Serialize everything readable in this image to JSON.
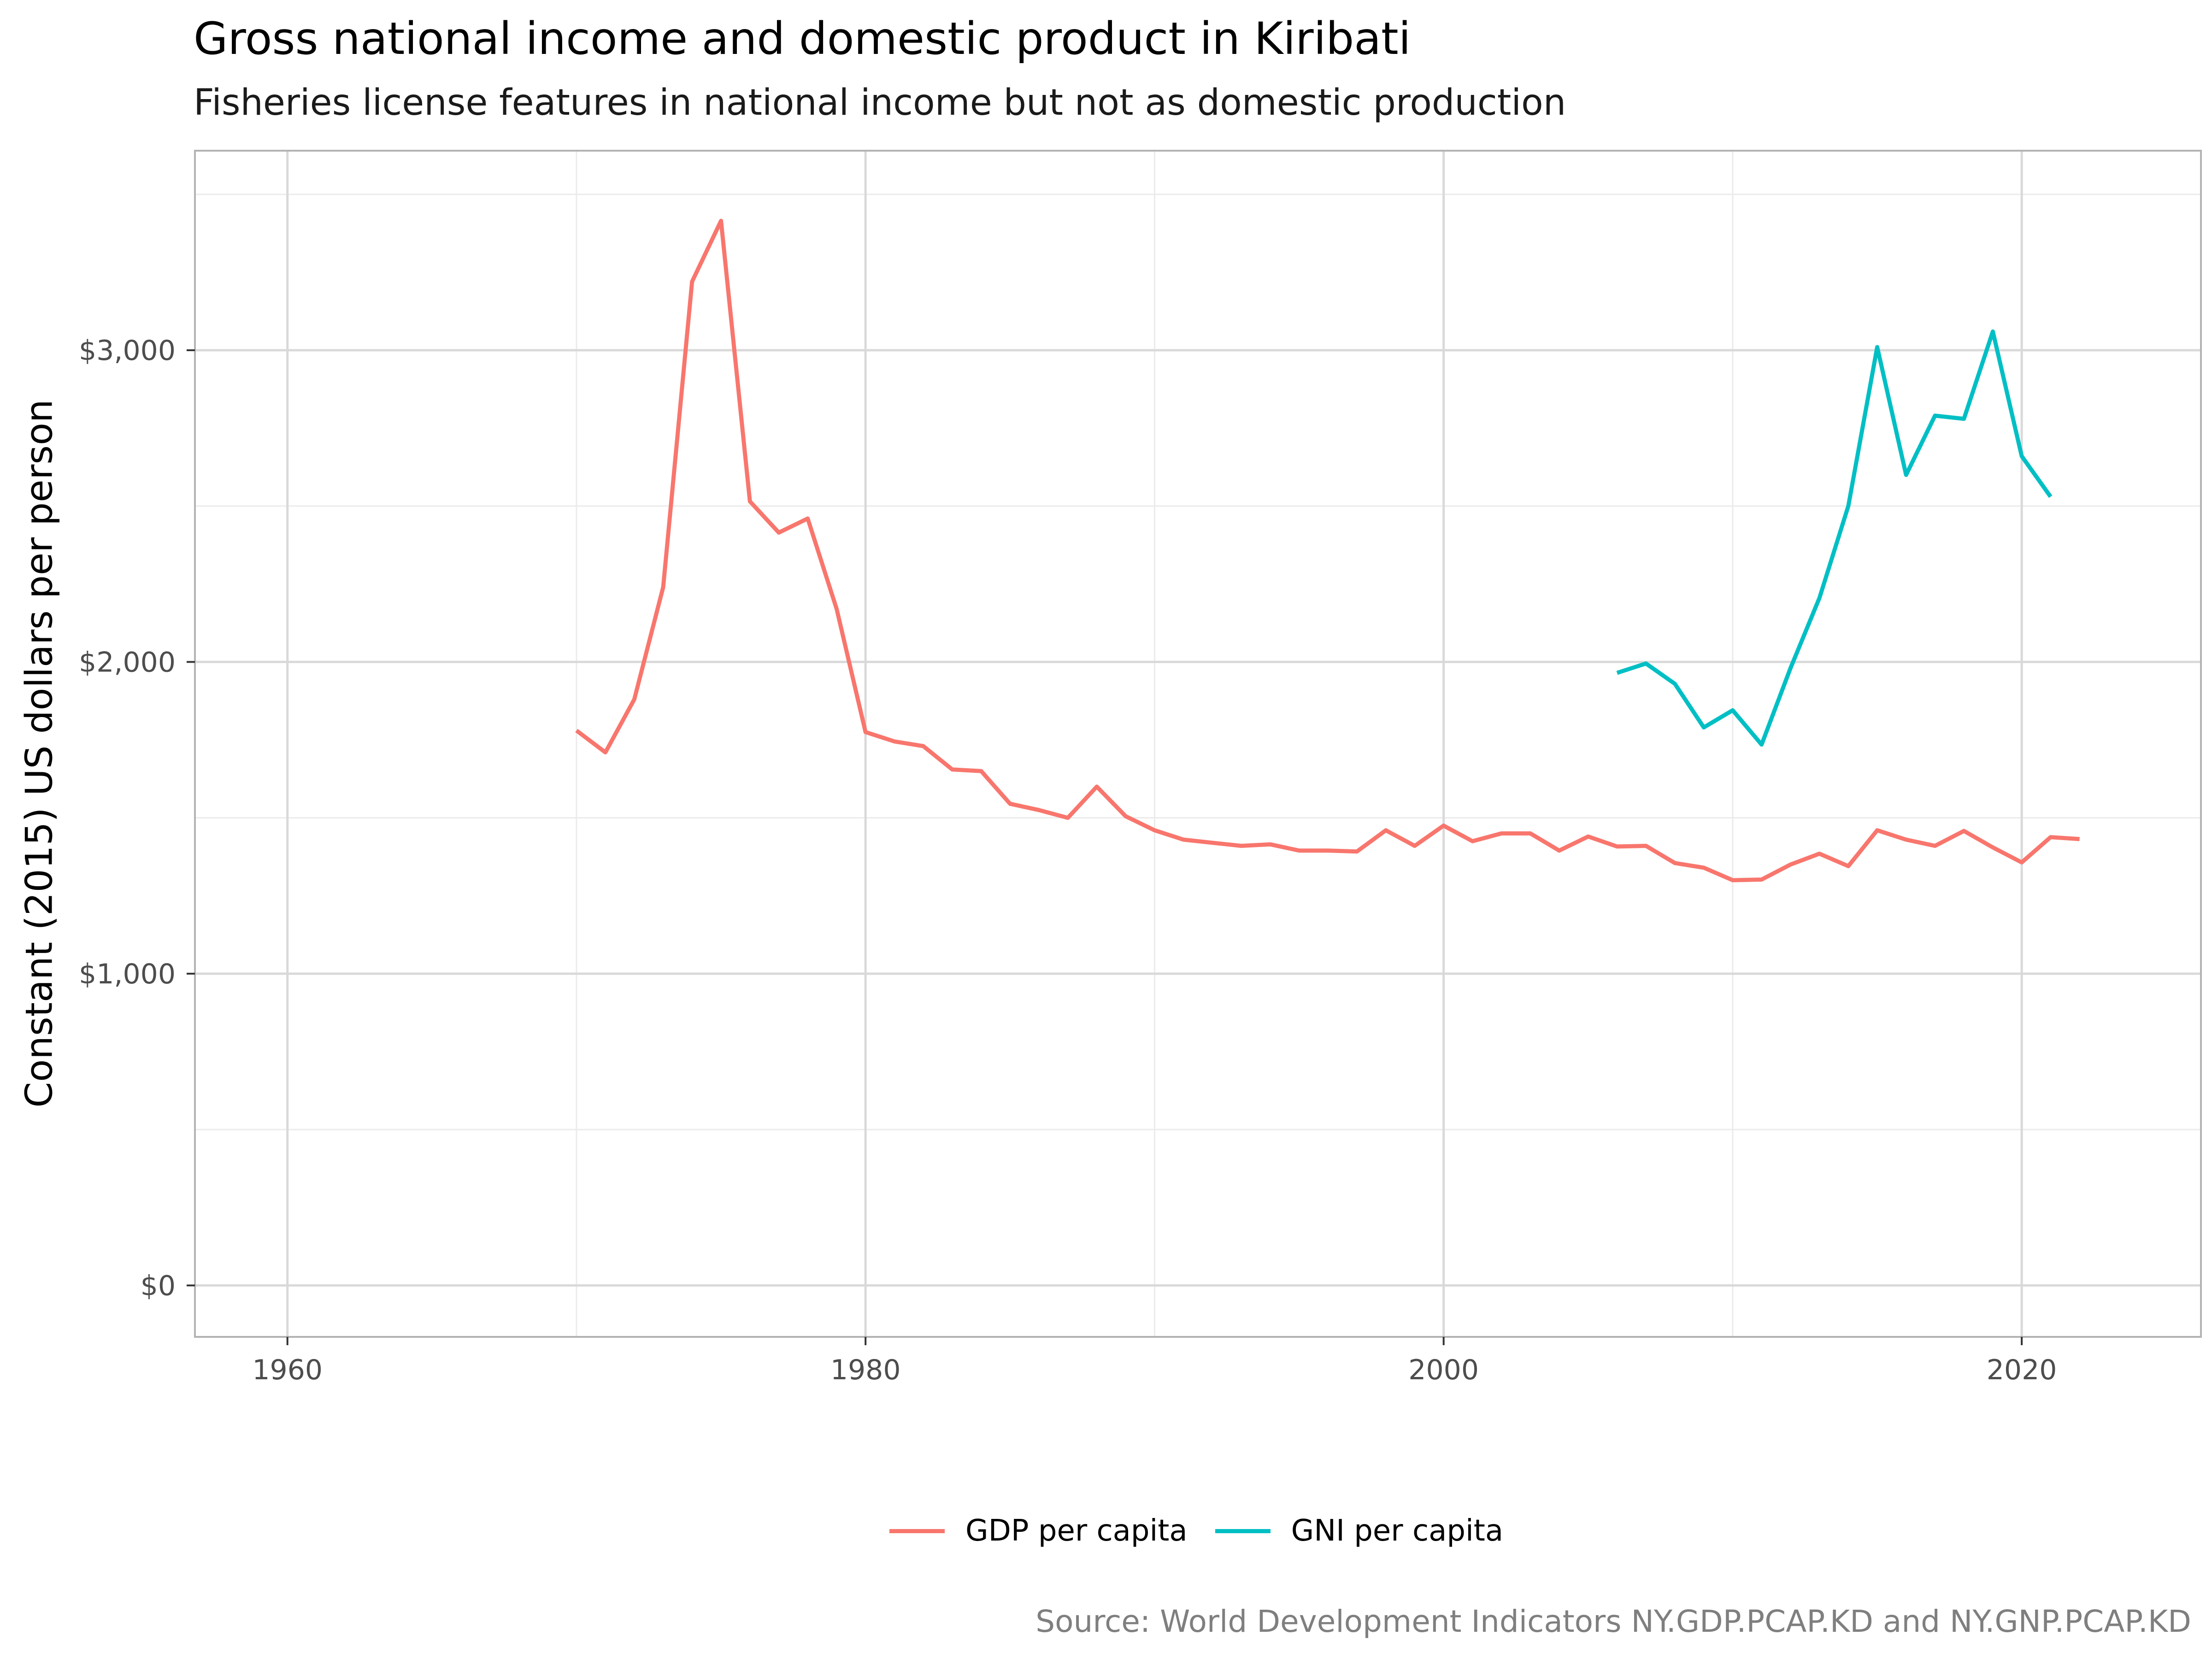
{
  "title": "Gross national income and domestic product in Kiribati",
  "subtitle": "Fisheries license features in national income but not as domestic production",
  "ylabel": "Constant (2015) US dollars per person",
  "source": "Source: World Development Indicators NY.GDP.PCAP.KD and NY.GNP.PCAP.KD",
  "chart_data": {
    "type": "line",
    "xlim": [
      1956.8,
      2026.2
    ],
    "ylim": [
      -165,
      3640
    ],
    "x_ticks": [
      1960,
      1980,
      2000,
      2020
    ],
    "x_tick_labels": [
      "1960",
      "1980",
      "2000",
      "2020"
    ],
    "y_ticks": [
      0,
      1000,
      2000,
      3000
    ],
    "y_tick_labels": [
      "$0",
      "$1,000",
      "$2,000",
      "$3,000"
    ],
    "grid": true,
    "legend_position": "bottom",
    "series": [
      {
        "name": "GDP per capita",
        "color": "#F8766D",
        "x": [
          1970,
          1971,
          1972,
          1973,
          1974,
          1975,
          1976,
          1977,
          1978,
          1979,
          1980,
          1981,
          1982,
          1983,
          1984,
          1985,
          1986,
          1987,
          1988,
          1989,
          1990,
          1991,
          1992,
          1993,
          1994,
          1995,
          1996,
          1997,
          1998,
          1999,
          2000,
          2001,
          2002,
          2003,
          2004,
          2005,
          2006,
          2007,
          2008,
          2009,
          2010,
          2011,
          2012,
          2013,
          2014,
          2015,
          2016,
          2017,
          2018,
          2019,
          2020,
          2021,
          2022
        ],
        "y": [
          1780,
          1710,
          1880,
          2240,
          3220,
          3415,
          2515,
          2415,
          2460,
          2170,
          1775,
          1745,
          1730,
          1655,
          1650,
          1545,
          1525,
          1500,
          1600,
          1505,
          1460,
          1430,
          1420,
          1410,
          1415,
          1395,
          1395,
          1392,
          1460,
          1410,
          1475,
          1425,
          1450,
          1450,
          1395,
          1440,
          1408,
          1410,
          1355,
          1340,
          1300,
          1302,
          1350,
          1385,
          1345,
          1460,
          1430,
          1410,
          1458,
          1405,
          1357,
          1438,
          1432
        ]
      },
      {
        "name": "GNI per capita",
        "color": "#00BFC4",
        "x": [
          2006,
          2007,
          2008,
          2009,
          2010,
          2011,
          2012,
          2013,
          2014,
          2015,
          2016,
          2017,
          2018,
          2019,
          2020,
          2021
        ],
        "y": [
          1965,
          1995,
          1930,
          1790,
          1845,
          1735,
          1980,
          2205,
          2500,
          3010,
          2600,
          2790,
          2780,
          3060,
          2660,
          2530
        ]
      }
    ]
  }
}
